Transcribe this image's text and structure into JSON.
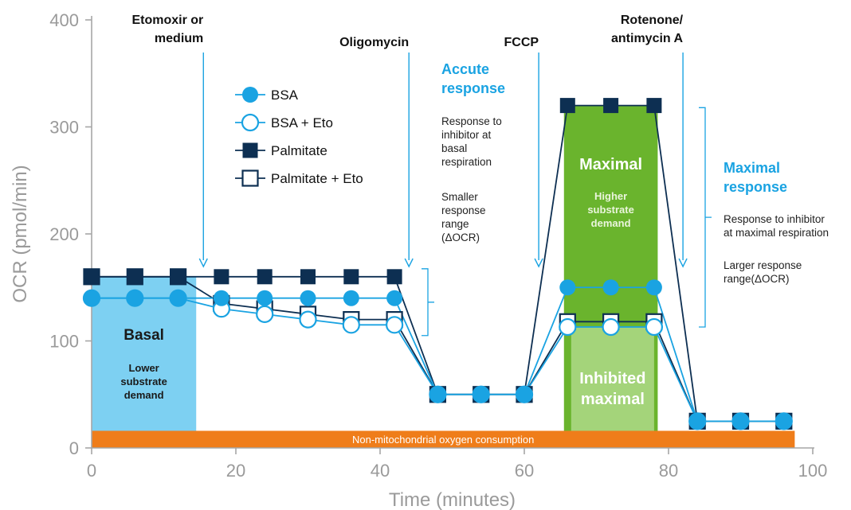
{
  "chart_data": {
    "type": "line",
    "xlabel": "Time (minutes)",
    "ylabel": "OCR (pmol/min)",
    "xlim": [
      0,
      100
    ],
    "ylim": [
      0,
      400
    ],
    "xticks": [
      "0",
      "20",
      "40",
      "60",
      "80",
      "100"
    ],
    "yticks": [
      "0",
      "100",
      "200",
      "300",
      "400"
    ],
    "x": [
      0,
      6,
      12,
      18,
      24,
      30,
      36,
      42,
      48,
      54,
      60,
      66,
      72,
      78,
      84,
      90,
      96
    ],
    "series": [
      {
        "name": "BSA",
        "marker": "filled-circle",
        "color": "#1aa3e2",
        "values": [
          140,
          140,
          140,
          140,
          140,
          140,
          140,
          140,
          50,
          50,
          50,
          150,
          150,
          150,
          25,
          25,
          25
        ]
      },
      {
        "name": "BSA + Eto",
        "marker": "open-circle",
        "color": "#1aa3e2",
        "values": [
          140,
          140,
          140,
          130,
          125,
          120,
          115,
          115,
          50,
          50,
          50,
          113,
          113,
          113,
          25,
          25,
          25
        ]
      },
      {
        "name": "Palmitate",
        "marker": "filled-square",
        "color": "#0d2f52",
        "values": [
          160,
          160,
          160,
          160,
          160,
          160,
          160,
          160,
          50,
          50,
          50,
          320,
          320,
          320,
          25,
          25,
          25
        ]
      },
      {
        "name": "Palmitate + Eto",
        "marker": "open-square",
        "color": "#0d2f52",
        "values": [
          160,
          160,
          160,
          135,
          130,
          125,
          120,
          120,
          50,
          50,
          50,
          118,
          118,
          118,
          25,
          25,
          25
        ]
      }
    ],
    "legend": {
      "placement": "top-left",
      "entries": [
        "BSA",
        "BSA + Eto",
        "Palmitate",
        "Palmitate + Eto"
      ]
    },
    "injections": [
      {
        "lines": [
          "Etomoxir or",
          "medium"
        ],
        "x": 15.5
      },
      {
        "lines": [
          "Oligomycin"
        ],
        "x": 44
      },
      {
        "lines": [
          "FCCP"
        ],
        "x": 62
      },
      {
        "lines": [
          "Rotenone/",
          "antimycin A"
        ],
        "x": 82
      }
    ],
    "regions": {
      "basal": {
        "title": "Basal",
        "sub": [
          "Lower",
          "substrate",
          "demand"
        ],
        "x": [
          0,
          14.5
        ],
        "y": [
          0,
          160
        ],
        "color": "#7dd0f2"
      },
      "maximal": {
        "title": "Maximal",
        "sub": [
          "Higher",
          "substrate",
          "demand"
        ],
        "x": [
          65.5,
          78.5
        ],
        "y": [
          0,
          320
        ],
        "color": "#6ab42d"
      },
      "inhibited": {
        "title_lines": [
          "Inhibited",
          "maximal"
        ],
        "x": [
          66.5,
          78
        ],
        "y": [
          0,
          113
        ],
        "color": "#a4d47a"
      },
      "non_mito": {
        "label": "Non-mitochondrial oxygen consumption",
        "x": [
          0,
          97.5
        ],
        "y": [
          0,
          16
        ],
        "color": "#ef7d1a"
      }
    },
    "annotations": {
      "acute": {
        "title": [
          "Accute",
          "response"
        ],
        "text1": [
          "Response to",
          "inhibitor at",
          "basal",
          "respiration"
        ],
        "text2": [
          "Smaller",
          "response",
          "range",
          "(ΔOCR)"
        ]
      },
      "maximal": {
        "title": [
          "Maximal",
          "response"
        ],
        "text1": [
          "Response to inhibitor",
          "at maximal respiration"
        ],
        "text2": [
          "Larger response",
          "range(ΔOCR)"
        ]
      }
    },
    "colors": {
      "light_blue": "#1aa3e2",
      "navy": "#0d2f52",
      "axis": "#a6a6a6",
      "orange": "#ef7d1a"
    }
  }
}
